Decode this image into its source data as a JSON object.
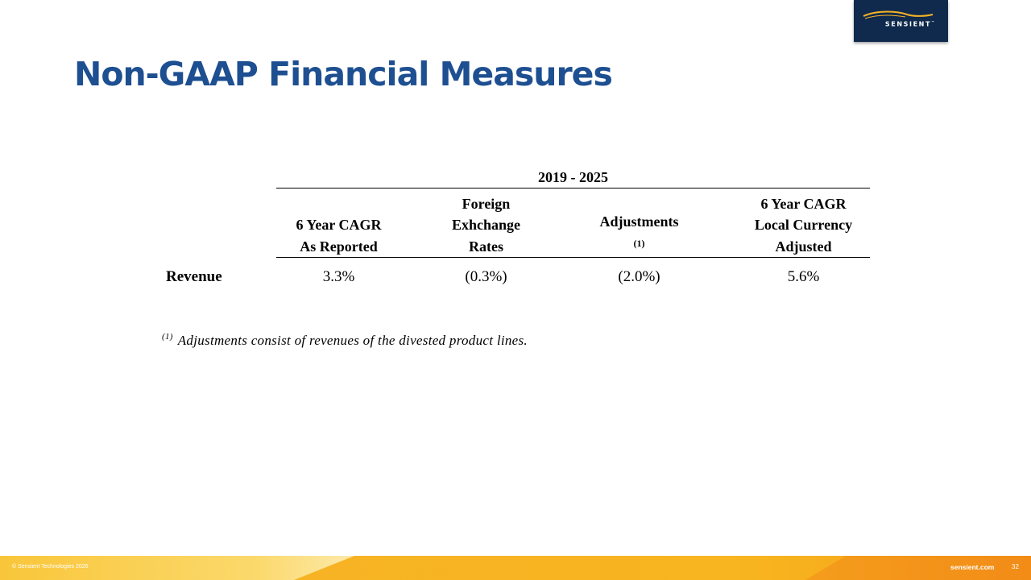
{
  "brand": {
    "logo_text": "SENSIENT",
    "colors": {
      "navy": "#0f2a4d",
      "title_blue": "#1d4f91",
      "gold": "#f7b324",
      "orange": "#f39019"
    }
  },
  "slide": {
    "title": "Non-GAAP Financial Measures"
  },
  "table": {
    "period": "2019 - 2025",
    "headers": [
      [
        "6 Year CAGR",
        "As Reported"
      ],
      [
        "Foreign",
        "Exhchange",
        "Rates"
      ],
      [
        "Adjustments"
      ],
      [
        "6 Year CAGR",
        "Local Currency",
        "Adjusted"
      ]
    ],
    "adjustments_marker": "(1)",
    "row": {
      "label": "Revenue",
      "values": [
        "3.3%",
        "(0.3%)",
        "(2.0%)",
        "5.6%"
      ]
    }
  },
  "footnote": {
    "marker": "(1)",
    "text": "Adjustments consist of revenues of the divested product lines."
  },
  "footer": {
    "copyright": "© Sensient Technologies 2026",
    "site": "sensient.com",
    "page": "32"
  }
}
